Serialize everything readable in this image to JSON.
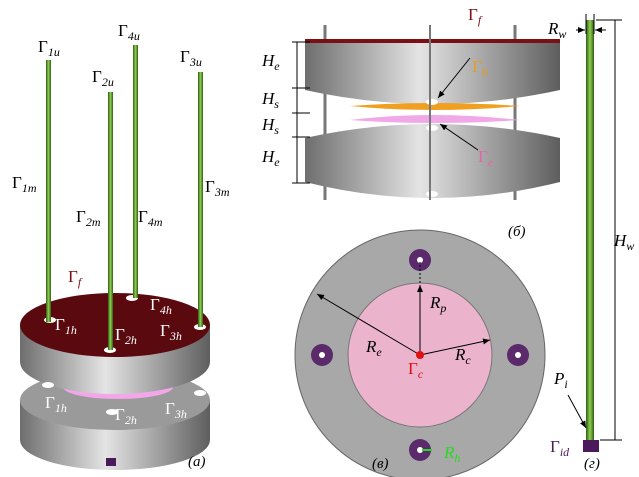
{
  "panel_a": {
    "caption": "(a)",
    "labels": [
      {
        "main": "Γ",
        "sub": "1u"
      },
      {
        "main": "Γ",
        "sub": "2u"
      },
      {
        "main": "Γ",
        "sub": "4u"
      },
      {
        "main": "Γ",
        "sub": "3u"
      },
      {
        "main": "Γ",
        "sub": "1m"
      },
      {
        "main": "Γ",
        "sub": "2m"
      },
      {
        "main": "Γ",
        "sub": "4m"
      },
      {
        "main": "Γ",
        "sub": "3m"
      },
      {
        "main": "Γ",
        "sub": "f",
        "color": "#7a0f14"
      },
      {
        "main": "Γ",
        "sub": "4h",
        "color": "#ffffff"
      },
      {
        "main": "Γ",
        "sub": "1h",
        "color": "#ffffff"
      },
      {
        "main": "Γ",
        "sub": "2h",
        "color": "#ffffff"
      },
      {
        "main": "Γ",
        "sub": "3h",
        "color": "#ffffff"
      },
      {
        "main": "Γ",
        "sub": "1h",
        "color": "#ffffff"
      },
      {
        "main": "Γ",
        "sub": "2h",
        "color": "#ffffff"
      },
      {
        "main": "Γ",
        "sub": "3h",
        "color": "#ffffff"
      }
    ]
  },
  "panel_b": {
    "caption": "(б)",
    "labels": [
      {
        "main": "Γ",
        "sub": "f",
        "color": "#7a0f14"
      },
      {
        "main": "H",
        "sub": "e"
      },
      {
        "main": "H",
        "sub": "s"
      },
      {
        "main": "H",
        "sub": "s"
      },
      {
        "main": "H",
        "sub": "e"
      },
      {
        "main": "Γ",
        "sub": "b",
        "color": "#e89a1a"
      },
      {
        "main": "Γ",
        "sub": "e",
        "color": "#e066a8"
      }
    ]
  },
  "panel_c": {
    "caption": "(в)",
    "labels": [
      {
        "main": "R",
        "sub": "p"
      },
      {
        "main": "R",
        "sub": "e"
      },
      {
        "main": "R",
        "sub": "c"
      },
      {
        "main": "Γ",
        "sub": "c",
        "color": "#e01010"
      },
      {
        "main": "R",
        "sub": "h",
        "color": "#22dd22"
      }
    ]
  },
  "panel_d": {
    "caption": "(г)",
    "labels": [
      {
        "main": "R",
        "sub": "w"
      },
      {
        "main": "H",
        "sub": "w"
      },
      {
        "main": "P",
        "sub": "i"
      },
      {
        "main": "Γ",
        "sub": "id",
        "color": "#4a1a5a"
      }
    ]
  }
}
